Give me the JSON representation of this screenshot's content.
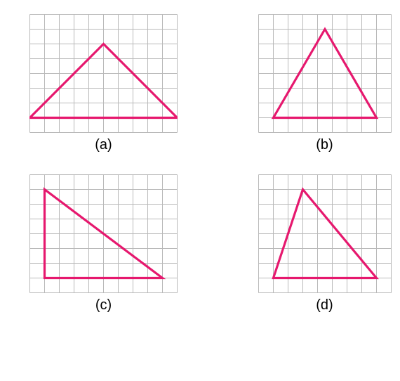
{
  "figure": {
    "cell_size": 21,
    "grid_color": "#b9b9b9",
    "grid_stroke_width": 1,
    "triangle_color": "#e6186e",
    "triangle_stroke_width": 3.2,
    "label_color": "#000000",
    "label_fontsize": 20,
    "panels": [
      {
        "key": "a",
        "label": "(a)",
        "cols": 10,
        "rows": 8,
        "triangle": [
          [
            0,
            7
          ],
          [
            5,
            2
          ],
          [
            10,
            7
          ]
        ]
      },
      {
        "key": "b",
        "label": "(b)",
        "cols": 9,
        "rows": 8,
        "triangle": [
          [
            1,
            7
          ],
          [
            4.5,
            1
          ],
          [
            8,
            7
          ]
        ]
      },
      {
        "key": "c",
        "label": "(c)",
        "cols": 10,
        "rows": 8,
        "triangle": [
          [
            1,
            1
          ],
          [
            1,
            7
          ],
          [
            9,
            7
          ]
        ]
      },
      {
        "key": "d",
        "label": "(d)",
        "cols": 9,
        "rows": 8,
        "triangle": [
          [
            1,
            7
          ],
          [
            3,
            1
          ],
          [
            8,
            7
          ]
        ]
      }
    ]
  }
}
